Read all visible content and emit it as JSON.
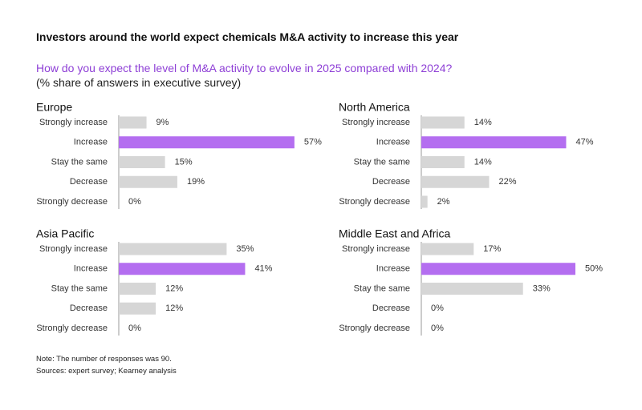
{
  "header": {
    "title": "Investors around the world expect chemicals M&A activity to increase this year",
    "question": "How do you expect the level of M&A activity to evolve in 2025 compared with 2024?",
    "subtitle": "(% share of answers in executive survey)"
  },
  "colors": {
    "highlight": "#b46ef0",
    "bar": "#d6d6d6",
    "axis": "#9a9a9a"
  },
  "chart_data": [
    {
      "type": "bar",
      "orientation": "horizontal",
      "title": "Europe",
      "categories": [
        "Strongly increase",
        "Increase",
        "Stay the same",
        "Decrease",
        "Strongly decrease"
      ],
      "values": [
        9,
        57,
        15,
        19,
        0
      ],
      "highlight": "Increase",
      "unit": "%"
    },
    {
      "type": "bar",
      "orientation": "horizontal",
      "title": "North America",
      "categories": [
        "Strongly increase",
        "Increase",
        "Stay the same",
        "Decrease",
        "Strongly decrease"
      ],
      "values": [
        14,
        47,
        14,
        22,
        2
      ],
      "highlight": "Increase",
      "unit": "%"
    },
    {
      "type": "bar",
      "orientation": "horizontal",
      "title": "Asia Pacific",
      "categories": [
        "Strongly increase",
        "Increase",
        "Stay the same",
        "Decrease",
        "Strongly decrease"
      ],
      "values": [
        35,
        41,
        12,
        12,
        0
      ],
      "highlight": "Increase",
      "unit": "%"
    },
    {
      "type": "bar",
      "orientation": "horizontal",
      "title": "Middle East and Africa",
      "categories": [
        "Strongly increase",
        "Increase",
        "Stay the same",
        "Decrease",
        "Strongly decrease"
      ],
      "values": [
        17,
        50,
        33,
        0,
        0
      ],
      "highlight": "Increase",
      "unit": "%"
    }
  ],
  "footer": {
    "note": "Note: The number of responses was 90.",
    "sources": "Sources: expert survey; Kearney analysis"
  }
}
